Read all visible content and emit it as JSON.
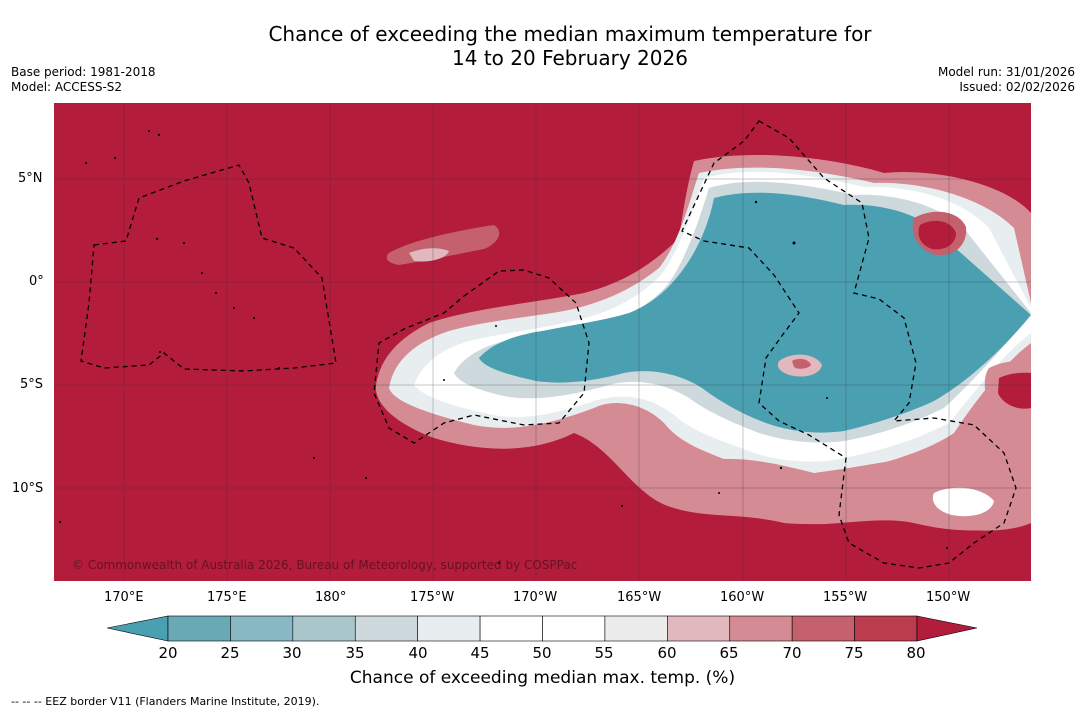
{
  "title": {
    "line1": "Chance of exceeding the median maximum temperature for",
    "line2": "14 to 20 February 2026"
  },
  "meta": {
    "base_period": "Base period: 1981-2018",
    "model": "Model: ACCESS-S2",
    "model_run": "Model run: 31/01/2026",
    "issued": "Issued: 02/02/2026"
  },
  "map": {
    "copyright": "© Commonwealth of Australia 2026, Bureau of Meteorology, supported by COSPPac",
    "lat_labels": [
      "5°N",
      "0°",
      "5°S",
      "10°S"
    ],
    "lon_labels": [
      "170°E",
      "175°E",
      "180°",
      "175°W",
      "170°W",
      "165°W",
      "160°W",
      "155°W",
      "150°W"
    ]
  },
  "legend": {
    "title": "Chance of exceeding median max. temp. (%)",
    "ticks": [
      "20",
      "25",
      "30",
      "35",
      "40",
      "45",
      "50",
      "55",
      "60",
      "65",
      "70",
      "75",
      "80"
    ],
    "colors": {
      "below": "#4aa0b1",
      "bins": [
        "#6aa9b6",
        "#88b8c4",
        "#a9c6cb",
        "#cdd9dc",
        "#e8eef0",
        "#ffffff",
        "#ffffff",
        "#ececec",
        "#e0b8be",
        "#d48b93",
        "#c5606d",
        "#bb3c4c"
      ],
      "above": "#b31c3b"
    }
  },
  "footer": "--  --  -- EEZ border V11 (Flanders Marine Institute, 2019)."
}
